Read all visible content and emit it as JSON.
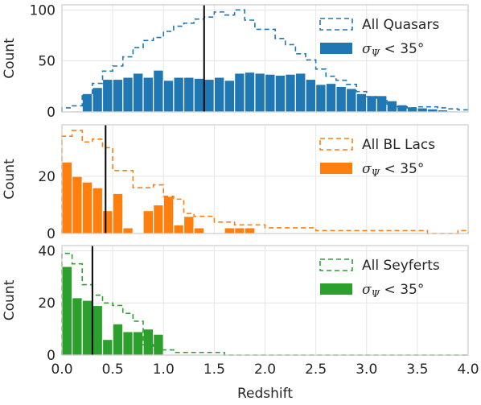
{
  "chart_data": [
    {
      "type": "bar",
      "panel": "quasars",
      "xlabel": "",
      "ylabel": "Count",
      "xlim": [
        0.0,
        4.0
      ],
      "ylim": [
        0,
        105
      ],
      "yticks": [
        0,
        50,
        100
      ],
      "bin_width": 0.1,
      "bin_start": 0.0,
      "color": "#1f77b4",
      "grid": true,
      "legend_position": "upper-right",
      "median_line": 1.4,
      "series": [
        {
          "name": "All Quasars",
          "style": "step-dashed",
          "values": [
            4,
            6,
            16,
            28,
            40,
            45,
            54,
            63,
            70,
            73,
            79,
            84,
            87,
            91,
            93,
            98,
            95,
            100,
            90,
            81,
            81,
            72,
            66,
            57,
            51,
            42,
            35,
            31,
            27,
            20,
            15,
            12,
            7,
            5,
            4,
            5,
            5,
            4,
            3,
            2
          ]
        },
        {
          "name": "σΨ < 35°",
          "label_prefix": "σ",
          "label_subscript": "Ψ",
          "label_suffix": " < 35°",
          "style": "filled",
          "values": [
            0,
            1,
            18,
            24,
            32,
            32,
            34,
            38,
            34,
            41,
            31,
            34,
            34,
            33,
            32,
            34,
            31,
            38,
            39,
            38,
            37,
            36,
            37,
            38,
            32,
            27,
            28,
            25,
            23,
            18,
            16,
            16,
            11,
            7,
            5,
            4,
            3,
            2,
            1,
            0
          ]
        }
      ]
    },
    {
      "type": "bar",
      "panel": "bl_lacs",
      "xlabel": "",
      "ylabel": "Count",
      "xlim": [
        0.0,
        4.0
      ],
      "ylim": [
        0,
        38
      ],
      "yticks": [
        0,
        20
      ],
      "bin_width": 0.1,
      "bin_start": 0.0,
      "color": "#ff7f0e",
      "grid": true,
      "legend_position": "upper-right",
      "median_line": 0.43,
      "series": [
        {
          "name": "All BL Lacs",
          "style": "step-dashed",
          "values": [
            34,
            36,
            32,
            33,
            30,
            22,
            22,
            16,
            16,
            17,
            13,
            12,
            7,
            6,
            6,
            4,
            4,
            3,
            3,
            3,
            2,
            2,
            2,
            2,
            2,
            1,
            1,
            1,
            1,
            1,
            1,
            1,
            1,
            1,
            1,
            1,
            0,
            0,
            0,
            1
          ]
        },
        {
          "name": "σΨ < 35°",
          "label_prefix": "σ",
          "label_subscript": "Ψ",
          "label_suffix": " < 35°",
          "style": "filled",
          "values": [
            25,
            20,
            18,
            16,
            8,
            14,
            2,
            0,
            8,
            10,
            13,
            3,
            6,
            2,
            0,
            0,
            2,
            2,
            2,
            0,
            0,
            0,
            0,
            0,
            0,
            0,
            0,
            0,
            0,
            0,
            0,
            0,
            0,
            0,
            0,
            0,
            0,
            0,
            0,
            0
          ]
        }
      ]
    },
    {
      "type": "bar",
      "panel": "seyferts",
      "xlabel": "Redshift",
      "ylabel": "Count",
      "xlim": [
        0.0,
        4.0
      ],
      "ylim": [
        0,
        42
      ],
      "yticks": [
        0,
        20,
        40
      ],
      "xticks": [
        "0.0",
        "0.5",
        "1.0",
        "1.5",
        "2.0",
        "2.5",
        "3.0",
        "3.5",
        "4.0"
      ],
      "bin_width": 0.1,
      "bin_start": 0.0,
      "color": "#2ca02c",
      "grid": true,
      "legend_position": "upper-right",
      "median_line": 0.3,
      "series": [
        {
          "name": "All Seyferts",
          "style": "step-dashed",
          "values": [
            39,
            35,
            27,
            23,
            20,
            19,
            16,
            13,
            4,
            2,
            2,
            1,
            1,
            1,
            1,
            1,
            0,
            0,
            0,
            0,
            0,
            0,
            0,
            0,
            0,
            0,
            0,
            0,
            0,
            0,
            0,
            0,
            0,
            0,
            0,
            0,
            0,
            0,
            0,
            0
          ]
        },
        {
          "name": "σΨ < 35°",
          "label_prefix": "σ",
          "label_subscript": "Ψ",
          "label_suffix": " < 35°",
          "style": "filled",
          "values": [
            34,
            22,
            21,
            19,
            6,
            12,
            9,
            9,
            10,
            8,
            0,
            0,
            0,
            0,
            0,
            0,
            0,
            0,
            0,
            0,
            0,
            0,
            0,
            0,
            0,
            0,
            0,
            0,
            0,
            0,
            0,
            0,
            0,
            0,
            0,
            0,
            0,
            0,
            0,
            0
          ]
        }
      ]
    }
  ]
}
